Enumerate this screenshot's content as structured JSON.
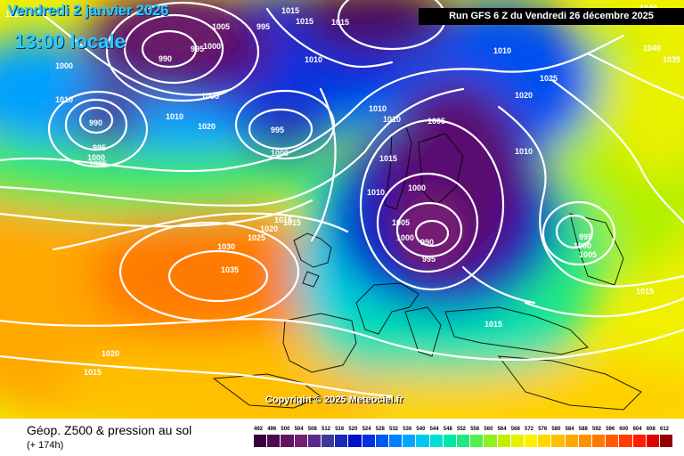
{
  "header": {
    "date": "Vendredi 2 janvier 2026",
    "time": "13:00 locale",
    "run": "Run GFS 6 Z du Vendredi 26 décembre 2025"
  },
  "copyright": "Copyright © 2025 Meteociel.fr",
  "footer": {
    "title": "Géop. Z500 & pression au sol",
    "subtitle": "(+ 174h)"
  },
  "legend": {
    "labels": [
      "492",
      "496",
      "500",
      "504",
      "508",
      "512",
      "516",
      "520",
      "524",
      "528",
      "532",
      "536",
      "540",
      "544",
      "548",
      "552",
      "556",
      "560",
      "564",
      "568",
      "572",
      "576",
      "580",
      "584",
      "588",
      "592",
      "596",
      "600",
      "604",
      "608",
      "612"
    ],
    "colors": [
      "#3a003a",
      "#4e0a4e",
      "#611561",
      "#742074",
      "#5a2a8a",
      "#3a3aa0",
      "#1a2ab4",
      "#0010c8",
      "#0030e0",
      "#0058f0",
      "#0080ff",
      "#00a8ff",
      "#00c8f0",
      "#00e0d0",
      "#00e8a8",
      "#20e880",
      "#50f050",
      "#90f020",
      "#c0f000",
      "#e8f000",
      "#fff000",
      "#ffd800",
      "#ffc000",
      "#ffa800",
      "#ff9000",
      "#ff7800",
      "#ff5a00",
      "#ff3c00",
      "#ff1e00",
      "#e00000",
      "#900000"
    ]
  },
  "isobars": [
    {
      "label": "1025",
      "color": "#ffffff"
    },
    {
      "label": "1005",
      "color": "#ffffff"
    },
    {
      "label": "995",
      "color": "#ffffff"
    },
    {
      "label": "1015",
      "color": "#ffffff"
    },
    {
      "label": "1015",
      "color": "#ffffff"
    },
    {
      "label": "1000",
      "color": "#ffffff"
    },
    {
      "label": "1040",
      "color": "#ffffff"
    },
    {
      "label": "990",
      "color": "#ffffff"
    },
    {
      "label": "995",
      "color": "#ffffff"
    },
    {
      "label": "1000",
      "color": "#ffffff"
    },
    {
      "label": "1010",
      "color": "#ffffff"
    },
    {
      "label": "1015",
      "color": "#ffffff"
    },
    {
      "label": "1010",
      "color": "#ffffff"
    },
    {
      "label": "1025",
      "color": "#ffffff"
    },
    {
      "label": "1035",
      "color": "#ffffff"
    },
    {
      "label": "1040",
      "color": "#ffffff"
    },
    {
      "label": "1010",
      "color": "#ffffff"
    },
    {
      "label": "1005",
      "color": "#ffffff"
    },
    {
      "label": "1020",
      "color": "#ffffff"
    },
    {
      "label": "990",
      "color": "#ffffff"
    },
    {
      "label": "1010",
      "color": "#ffffff"
    },
    {
      "label": "1010",
      "color": "#ffffff"
    },
    {
      "label": "1020",
      "color": "#ffffff"
    },
    {
      "label": "995",
      "color": "#ffffff"
    },
    {
      "label": "1010",
      "color": "#ffffff"
    },
    {
      "label": "1010",
      "color": "#ffffff"
    },
    {
      "label": "1005",
      "color": "#ffffff"
    },
    {
      "label": "995",
      "color": "#ffffff"
    },
    {
      "label": "1000",
      "color": "#ffffff"
    },
    {
      "label": "1000",
      "color": "#ffffff"
    },
    {
      "label": "1005",
      "color": "#ffffff"
    },
    {
      "label": "1010",
      "color": "#ffffff"
    },
    {
      "label": "1015",
      "color": "#ffffff"
    },
    {
      "label": "1000",
      "color": "#ffffff"
    },
    {
      "label": "1015",
      "color": "#ffffff"
    },
    {
      "label": "1015",
      "color": "#ffffff"
    },
    {
      "label": "1020",
      "color": "#ffffff"
    },
    {
      "label": "1025",
      "color": "#ffffff"
    },
    {
      "label": "1030",
      "color": "#ffffff"
    },
    {
      "label": "1005",
      "color": "#ffffff"
    },
    {
      "label": "1000",
      "color": "#ffffff"
    },
    {
      "label": "990",
      "color": "#ffffff"
    },
    {
      "label": "995",
      "color": "#ffffff"
    },
    {
      "label": "1035",
      "color": "#ffffff"
    },
    {
      "label": "995",
      "color": "#ffffff"
    },
    {
      "label": "1000",
      "color": "#ffffff"
    },
    {
      "label": "1005",
      "color": "#ffffff"
    },
    {
      "label": "1015",
      "color": "#ffffff"
    },
    {
      "label": "1015",
      "color": "#ffffff"
    },
    {
      "label": "1020",
      "color": "#ffffff"
    },
    {
      "label": "1015",
      "color": "#ffffff"
    }
  ]
}
